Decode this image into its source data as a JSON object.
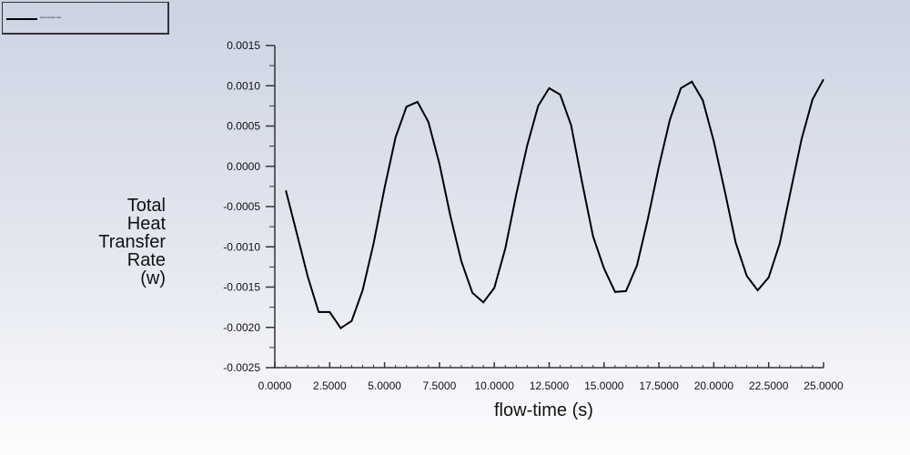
{
  "chart_data": {
    "type": "line",
    "title": "",
    "xlabel": "flow-time (s)",
    "ylabel": "Total Heat Transfer Rate (w)",
    "ylabel_lines": [
      "Total",
      "Heat",
      "Transfer",
      "Rate",
      "(w)"
    ],
    "xlim": [
      0,
      25
    ],
    "ylim": [
      -0.0025,
      0.0015
    ],
    "x_ticks": [
      "0.0000",
      "2.5000",
      "5.0000",
      "7.5000",
      "10.0000",
      "12.5000",
      "15.0000",
      "17.5000",
      "20.0000",
      "22.5000",
      "25.0000"
    ],
    "y_ticks": [
      "0.0015",
      "0.0010",
      "0.0005",
      "0.0000",
      "-0.0005",
      "-0.0010",
      "-0.0015",
      "-0.0020",
      "-0.0025"
    ],
    "grid": false,
    "legend_position": "top-left",
    "series": [
      {
        "name": "heat-transfer-rate",
        "color": "#000000",
        "x": [
          0.5,
          1.0,
          1.5,
          2.0,
          2.5,
          3.0,
          3.5,
          4.0,
          4.5,
          5.0,
          5.5,
          6.0,
          6.5,
          7.0,
          7.5,
          8.0,
          8.5,
          9.0,
          9.5,
          10.0,
          10.5,
          11.0,
          11.5,
          12.0,
          12.5,
          13.0,
          13.5,
          14.0,
          14.5,
          15.0,
          15.5,
          16.0,
          16.5,
          17.0,
          17.5,
          18.0,
          18.5,
          19.0,
          19.5,
          20.0,
          20.5,
          21.0,
          21.5,
          22.0,
          22.5,
          23.0,
          23.5,
          24.0,
          24.5,
          25.0
        ],
        "values": [
          -0.0003,
          -0.00083,
          -0.00137,
          -0.00181,
          -0.00181,
          -0.00201,
          -0.00192,
          -0.00154,
          -0.00096,
          -0.00027,
          0.00036,
          0.00074,
          0.0008,
          0.00055,
          3e-05,
          -0.00062,
          -0.00118,
          -0.00157,
          -0.00169,
          -0.00151,
          -0.00102,
          -0.00035,
          0.00026,
          0.00075,
          0.00097,
          0.00089,
          0.00051,
          -0.0002,
          -0.00087,
          -0.00127,
          -0.00156,
          -0.00155,
          -0.00123,
          -0.00065,
          0.0,
          0.00058,
          0.00097,
          0.00105,
          0.00082,
          0.00031,
          -0.00031,
          -0.00095,
          -0.00136,
          -0.00154,
          -0.00138,
          -0.00096,
          -0.00031,
          0.00034,
          0.00083,
          0.00108
        ]
      }
    ]
  },
  "legend": {
    "label": "heat-transfer-rate"
  }
}
